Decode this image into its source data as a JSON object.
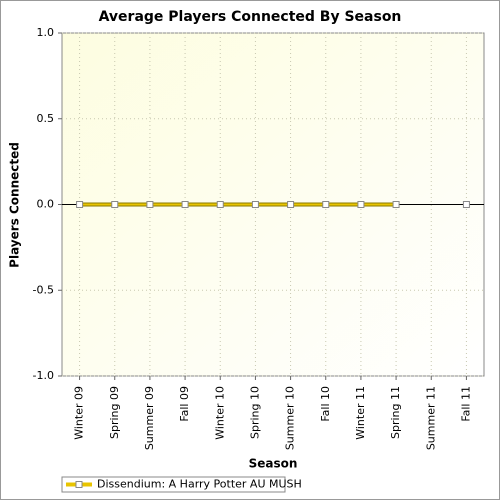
{
  "chart_data": {
    "type": "line",
    "title": "Average Players Connected By Season",
    "x_label": "Season",
    "y_label": "Players Connected",
    "categories": [
      "Winter 09",
      "Spring 09",
      "Summer 09",
      "Fall 09",
      "Winter 10",
      "Spring 10",
      "Summer 10",
      "Fall 10",
      "Winter 11",
      "Spring 11",
      "Summer 11",
      "Fall 11"
    ],
    "series": [
      {
        "name": "Dissendium: A Harry Potter AU MUSH",
        "color": "#e8c400",
        "values": [
          0,
          0,
          0,
          0,
          0,
          0,
          0,
          0,
          0,
          0,
          null,
          0
        ]
      }
    ],
    "ylim": [
      -1,
      1
    ],
    "yticks": [
      {
        "value": -1,
        "label": "-1.0"
      },
      -0.5,
      {
        "value": 0,
        "label": "0.0"
      },
      0.5,
      {
        "value": 1,
        "label": "1.0"
      }
    ],
    "grid": true
  }
}
